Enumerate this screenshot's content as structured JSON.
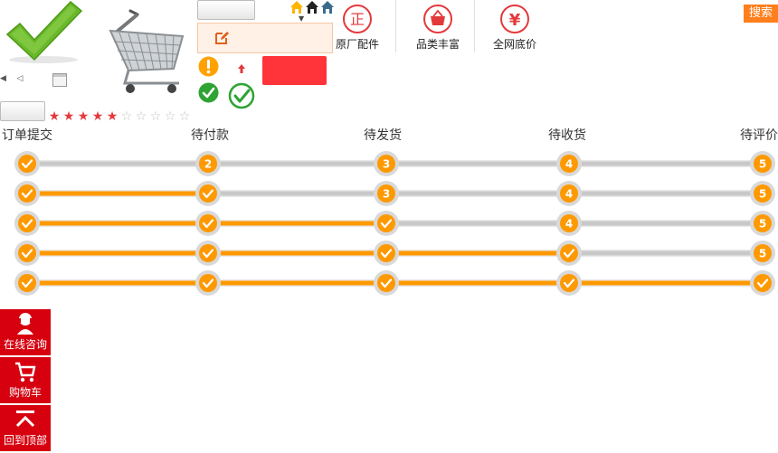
{
  "header": {
    "features": [
      {
        "icon": "genuine-parts-icon",
        "glyph": "正",
        "label": "原厂配件"
      },
      {
        "icon": "basket-icon",
        "glyph": "",
        "label": "品类丰富"
      },
      {
        "icon": "yuan-icon",
        "glyph": "¥",
        "label": "全网底价"
      }
    ],
    "search_label": "搜索"
  },
  "rating": {
    "score": 5,
    "max": 10
  },
  "steps": {
    "labels": [
      "订单提交",
      "待付款",
      "待发货",
      "待收货",
      "待评价"
    ],
    "progress_levels": [
      1,
      2,
      3,
      4,
      5
    ]
  },
  "sidebar": {
    "items": [
      {
        "icon": "consult-icon",
        "label": "在线咨询"
      },
      {
        "icon": "cart-icon",
        "label": "购物车"
      },
      {
        "icon": "back-to-top-icon",
        "label": "回到顶部"
      }
    ]
  },
  "colors": {
    "accent": "#ff9900",
    "track": "#c8c8c8",
    "red": "#d6000f",
    "search": "#ff7f1e",
    "star": "#e4393c"
  }
}
